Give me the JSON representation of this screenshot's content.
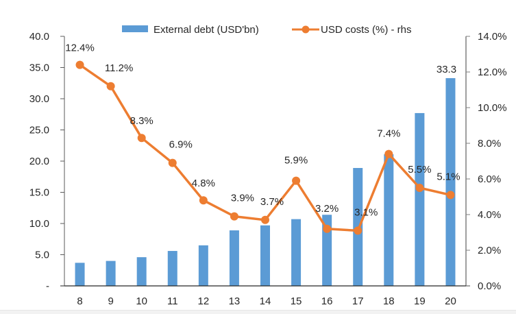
{
  "chart_data": {
    "type": "bar",
    "title": "",
    "xlabel": "",
    "ylabel": "",
    "categories": [
      "8",
      "9",
      "10",
      "11",
      "12",
      "13",
      "14",
      "15",
      "16",
      "17",
      "18",
      "19",
      "20"
    ],
    "series": [
      {
        "name": "External debt (USD'bn)",
        "type": "bar",
        "axis": "left",
        "color": "#5B9BD5",
        "values": [
          3.7,
          4.0,
          4.6,
          5.6,
          6.5,
          8.9,
          9.7,
          10.7,
          11.4,
          18.9,
          21.1,
          27.7,
          33.3
        ],
        "data_labels": {
          "12": "33.3"
        }
      },
      {
        "name": "USD costs (%) - rhs",
        "type": "line",
        "axis": "right",
        "color": "#ED7D31",
        "values": [
          12.4,
          11.2,
          8.3,
          6.9,
          4.8,
          3.9,
          3.7,
          5.9,
          3.2,
          3.1,
          7.4,
          5.5,
          5.1
        ],
        "labels": [
          "12.4%",
          "11.2%",
          "8.3%",
          "6.9%",
          "4.8%",
          "3.9%",
          "3.7%",
          "5.9%",
          "3.2%",
          "3.1%",
          "7.4%",
          "5.5%",
          "5.1%"
        ]
      }
    ],
    "left_axis": {
      "ylim": [
        0,
        40
      ],
      "ticks": [
        0,
        5,
        10,
        15,
        20,
        25,
        30,
        35,
        40
      ],
      "tick_labels": [
        "-",
        "5.0",
        "10.0",
        "15.0",
        "20.0",
        "25.0",
        "30.0",
        "35.0",
        "40.0"
      ]
    },
    "right_axis": {
      "ylim": [
        0,
        14
      ],
      "ticks": [
        0,
        2,
        4,
        6,
        8,
        10,
        12,
        14
      ],
      "tick_labels": [
        "0.0%",
        "2.0%",
        "4.0%",
        "6.0%",
        "8.0%",
        "10.0%",
        "12.0%",
        "14.0%"
      ]
    },
    "legend": {
      "position": "top",
      "entries": [
        "External debt (USD'bn)",
        "USD costs (%) - rhs"
      ]
    },
    "grid": false
  }
}
